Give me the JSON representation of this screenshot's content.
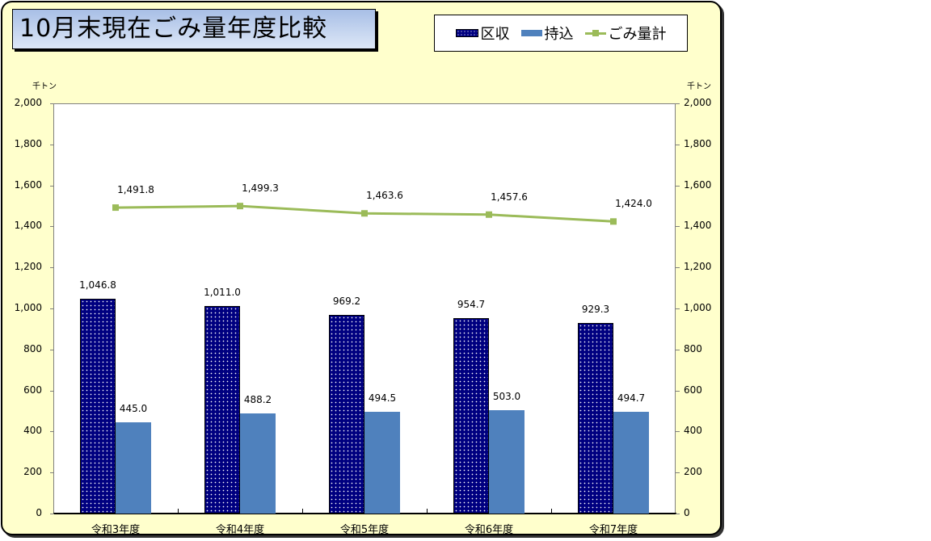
{
  "chart_data": {
    "type": "bar",
    "title": "10月末現在ごみ量年度比較",
    "categories": [
      "令和3年度",
      "令和4年度",
      "令和5年度",
      "令和6年度",
      "令和7年度"
    ],
    "series": [
      {
        "name": "区収",
        "type": "bar",
        "color": "#000080",
        "pattern": "dotted",
        "values": [
          1046.8,
          1011.0,
          969.2,
          954.7,
          929.3
        ],
        "labels": [
          "1,046.8",
          "1,011.0",
          "969.2",
          "954.7",
          "929.3"
        ]
      },
      {
        "name": "持込",
        "type": "bar",
        "color": "#4f81bd",
        "values": [
          445.0,
          488.2,
          494.5,
          503.0,
          494.7
        ],
        "labels": [
          "445.0",
          "488.2",
          "494.5",
          "503.0",
          "494.7"
        ]
      },
      {
        "name": "ごみ量計",
        "type": "line",
        "color": "#9bbb59",
        "values": [
          1491.8,
          1499.3,
          1463.6,
          1457.6,
          1424.0
        ],
        "labels": [
          "1,491.8",
          "1,499.3",
          "1,463.6",
          "1,457.6",
          "1,424.0"
        ]
      }
    ],
    "xlabel": "",
    "ylabel": "千トン",
    "y2label": "千トン",
    "ylim": [
      0,
      2000
    ],
    "yticks": [
      "0",
      "200",
      "400",
      "600",
      "800",
      "1,000",
      "1,200",
      "1,400",
      "1,600",
      "1,800",
      "2,000"
    ],
    "grid": false,
    "legend_position": "top-right"
  },
  "ui": {
    "title": "10月末現在ごみ量年度比較",
    "legend": [
      "区収",
      "持込",
      "ごみ量計"
    ],
    "unit_left": "千トン",
    "unit_right": "千トン"
  }
}
